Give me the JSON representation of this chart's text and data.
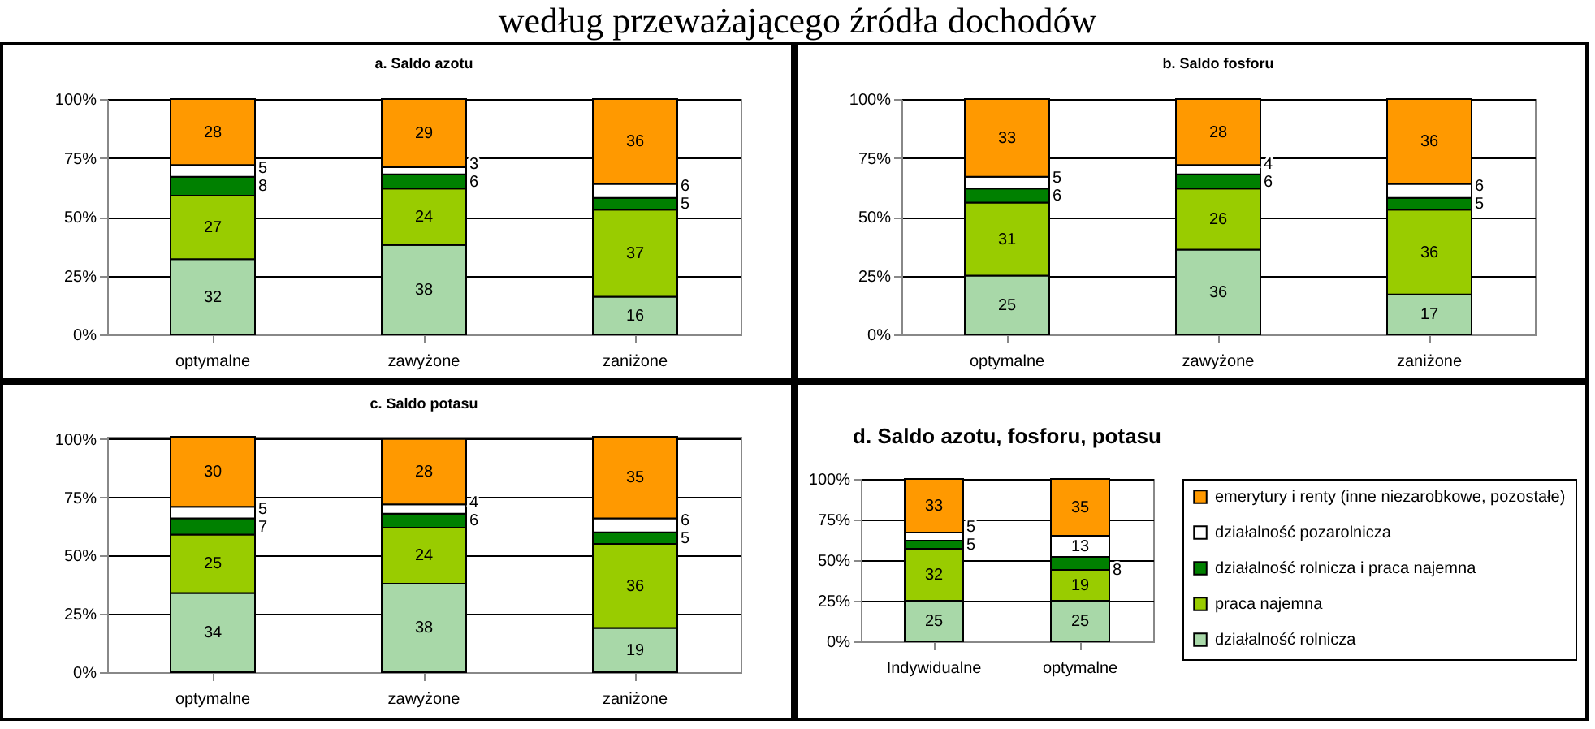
{
  "chart_data": [
    {
      "type": "other",
      "title": "według przeważającego źródła dochodów"
    },
    {
      "type": "bar",
      "stacked": true,
      "title": "a. Saldo azotu",
      "categories": [
        "optymalne",
        "zawyżone",
        "zaniżone"
      ],
      "ylim": [
        0,
        100
      ],
      "yticks": [
        {
          "value": 0,
          "label": "0%"
        },
        {
          "value": 25,
          "label": "25%"
        },
        {
          "value": 50,
          "label": "50%"
        },
        {
          "value": 75,
          "label": "75%"
        },
        {
          "value": 100,
          "label": "100%"
        }
      ],
      "grid": "y",
      "data_labels": true,
      "series": [
        {
          "color": "#a8d8a8",
          "values": [
            32,
            38,
            16
          ]
        },
        {
          "color": "#99cc00",
          "values": [
            27,
            24,
            37
          ]
        },
        {
          "color": "#008000",
          "values": [
            8,
            6,
            5
          ]
        },
        {
          "color": "#ffffff",
          "values": [
            5,
            3,
            6
          ]
        },
        {
          "color": "#ff9900",
          "values": [
            28,
            29,
            36
          ]
        }
      ]
    },
    {
      "type": "bar",
      "stacked": true,
      "title": "b. Saldo fosforu",
      "categories": [
        "optymalne",
        "zawyżone",
        "zaniżone"
      ],
      "ylim": [
        0,
        100
      ],
      "yticks": [
        {
          "value": 0,
          "label": "0%"
        },
        {
          "value": 25,
          "label": "25%"
        },
        {
          "value": 50,
          "label": "50%"
        },
        {
          "value": 75,
          "label": "75%"
        },
        {
          "value": 100,
          "label": "100%"
        }
      ],
      "grid": "y",
      "data_labels": true,
      "series": [
        {
          "color": "#a8d8a8",
          "values": [
            25,
            36,
            17
          ]
        },
        {
          "color": "#99cc00",
          "values": [
            31,
            26,
            36
          ]
        },
        {
          "color": "#008000",
          "values": [
            6,
            6,
            5
          ]
        },
        {
          "color": "#ffffff",
          "values": [
            5,
            4,
            6
          ]
        },
        {
          "color": "#ff9900",
          "values": [
            33,
            28,
            36
          ]
        }
      ]
    },
    {
      "type": "bar",
      "stacked": true,
      "title": "c. Saldo potasu",
      "categories": [
        "optymalne",
        "zawyżone",
        "zaniżone"
      ],
      "ylim": [
        0,
        101
      ],
      "yticks": [
        {
          "value": 0,
          "label": "0%"
        },
        {
          "value": 25,
          "label": "25%"
        },
        {
          "value": 50,
          "label": "50%"
        },
        {
          "value": 75,
          "label": "75%"
        },
        {
          "value": 100,
          "label": "100%"
        }
      ],
      "grid": "y",
      "data_labels": true,
      "series": [
        {
          "color": "#a8d8a8",
          "values": [
            34,
            38,
            19
          ]
        },
        {
          "color": "#99cc00",
          "values": [
            25,
            24,
            36
          ]
        },
        {
          "color": "#008000",
          "values": [
            7,
            6,
            5
          ]
        },
        {
          "color": "#ffffff",
          "values": [
            5,
            4,
            6
          ]
        },
        {
          "color": "#ff9900",
          "values": [
            30,
            28,
            35
          ]
        }
      ]
    },
    {
      "type": "bar",
      "stacked": true,
      "title": "d. Saldo azotu, fosforu, potasu",
      "categories": [
        "Indywidualne",
        "optymalne"
      ],
      "ylim": [
        0,
        100
      ],
      "yticks": [
        {
          "value": 0,
          "label": "0%"
        },
        {
          "value": 25,
          "label": "25%"
        },
        {
          "value": 50,
          "label": "50%"
        },
        {
          "value": 75,
          "label": "75%"
        },
        {
          "value": 100,
          "label": "100%"
        }
      ],
      "grid": "y",
      "data_labels": true,
      "legend": "right",
      "series": [
        {
          "name": "działalność rolnicza",
          "color": "#a8d8a8",
          "values": [
            25,
            25
          ]
        },
        {
          "name": "praca najemna",
          "color": "#99cc00",
          "values": [
            32,
            19
          ]
        },
        {
          "name": "działalność rolnicza i praca najemna",
          "color": "#008000",
          "values": [
            5,
            8
          ]
        },
        {
          "name": "działalność pozarolnicza",
          "color": "#ffffff",
          "values": [
            5,
            13
          ]
        },
        {
          "name": "emerytury i renty (inne niezarobkowe, pozostałe)",
          "color": "#ff9900",
          "values": [
            33,
            35
          ]
        }
      ]
    }
  ]
}
